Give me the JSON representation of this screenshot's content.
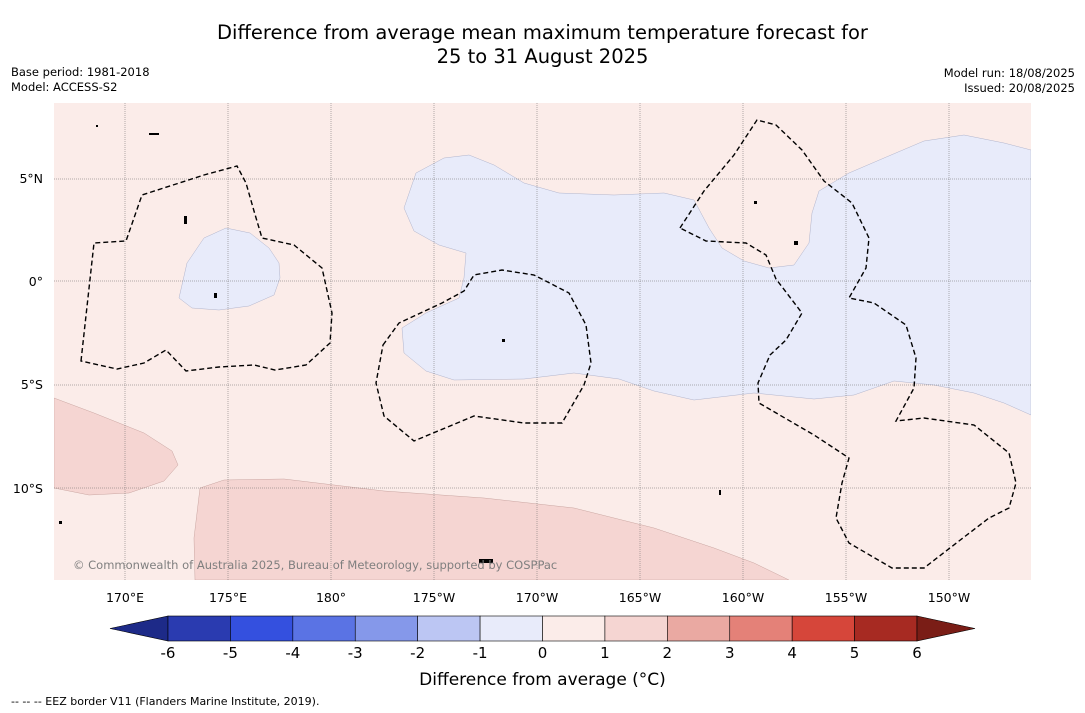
{
  "title": {
    "line1": "Difference from average mean maximum temperature forecast for",
    "line2": "25 to 31 August 2025"
  },
  "meta_left": {
    "base_period": "Base period: 1981-2018",
    "model": "Model: ACCESS-S2"
  },
  "meta_right": {
    "model_run": "Model run: 18/08/2025",
    "issued": "Issued: 20/08/2025"
  },
  "map": {
    "lat_labels": [
      "5°N",
      "0°",
      "5°S",
      "10°S"
    ],
    "lon_labels": [
      "170°E",
      "175°E",
      "180°",
      "175°W",
      "170°W",
      "165°W",
      "160°W",
      "155°W",
      "150°W"
    ],
    "copyright": "© Commonwealth of Australia 2025, Bureau of Meteorology, supported by COSPPac",
    "colors": {
      "anomaly_0_to_1": "#fbece9",
      "anomaly_1_to_2": "#f5d5d2",
      "anomaly_-1_to_0": "#e8ebfa",
      "eez_border": "#000000"
    }
  },
  "colorbar": {
    "ticks": [
      "-6",
      "-5",
      "-4",
      "-3",
      "-2",
      "-1",
      "0",
      "1",
      "2",
      "3",
      "4",
      "5",
      "6"
    ],
    "colors": [
      "#1d2a88",
      "#2a3bb0",
      "#3450df",
      "#5a73e4",
      "#8598ea",
      "#bcc6f3",
      "#e8ebfa",
      "#fbece9",
      "#f5d5d2",
      "#eaa9a2",
      "#e48178",
      "#d6463a",
      "#a72a22",
      "#7a1d16"
    ],
    "label": "Difference from average (°C)"
  },
  "footnote": "-- -- -- EEZ border V11 (Flanders Marine Institute, 2019)."
}
